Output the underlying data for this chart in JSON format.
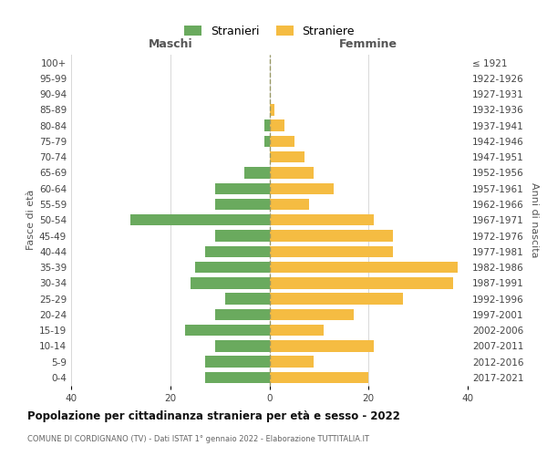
{
  "age_groups": [
    "0-4",
    "5-9",
    "10-14",
    "15-19",
    "20-24",
    "25-29",
    "30-34",
    "35-39",
    "40-44",
    "45-49",
    "50-54",
    "55-59",
    "60-64",
    "65-69",
    "70-74",
    "75-79",
    "80-84",
    "85-89",
    "90-94",
    "95-99",
    "100+"
  ],
  "birth_years": [
    "2017-2021",
    "2012-2016",
    "2007-2011",
    "2002-2006",
    "1997-2001",
    "1992-1996",
    "1987-1991",
    "1982-1986",
    "1977-1981",
    "1972-1976",
    "1967-1971",
    "1962-1966",
    "1957-1961",
    "1952-1956",
    "1947-1951",
    "1942-1946",
    "1937-1941",
    "1932-1936",
    "1927-1931",
    "1922-1926",
    "≤ 1921"
  ],
  "maschi": [
    13,
    13,
    11,
    17,
    11,
    9,
    16,
    15,
    13,
    11,
    28,
    11,
    11,
    5,
    0,
    1,
    1,
    0,
    0,
    0,
    0
  ],
  "femmine": [
    20,
    9,
    21,
    11,
    17,
    27,
    37,
    38,
    25,
    25,
    21,
    8,
    13,
    9,
    7,
    5,
    3,
    1,
    0,
    0,
    0
  ],
  "color_maschi": "#6aaa5e",
  "color_femmine": "#f5bc42",
  "title": "Popolazione per cittadinanza straniera per età e sesso - 2022",
  "subtitle": "COMUNE DI CORDIGNANO (TV) - Dati ISTAT 1° gennaio 2022 - Elaborazione TUTTITALIA.IT",
  "ylabel_left": "Fasce di età",
  "ylabel_right": "Anni di nascita",
  "label_maschi": "Maschi",
  "label_femmine": "Femmine",
  "legend_maschi": "Stranieri",
  "legend_femmine": "Straniere",
  "xlim": 40,
  "background_color": "#ffffff",
  "grid_color": "#d8d8d8"
}
